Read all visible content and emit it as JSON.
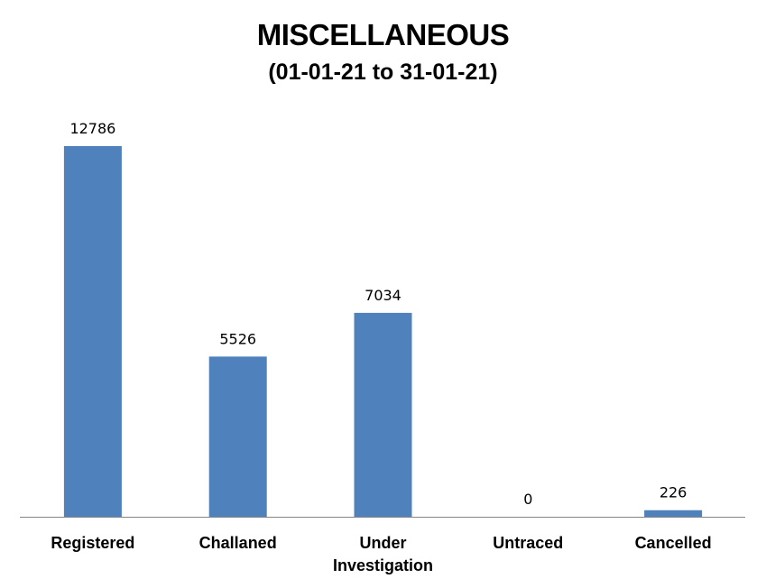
{
  "chart_data": {
    "type": "bar",
    "title": "MISCELLANEOUS",
    "subtitle": "(01-01-21 to 31-01-21)",
    "categories": [
      [
        "Registered"
      ],
      [
        "Challaned"
      ],
      [
        "Under",
        "Investigation"
      ],
      [
        "Untraced"
      ],
      [
        "Cancelled"
      ]
    ],
    "values": [
      12786,
      5526,
      7034,
      0,
      226
    ],
    "data_labels": [
      "12786",
      "5526",
      "7034",
      "0",
      "226"
    ],
    "xlabel": "",
    "ylabel": "",
    "ylim": [
      0,
      12786
    ],
    "grid": false,
    "legend": "none",
    "colors": {
      "bar": "#4f81bd",
      "axis": "#868686"
    }
  }
}
